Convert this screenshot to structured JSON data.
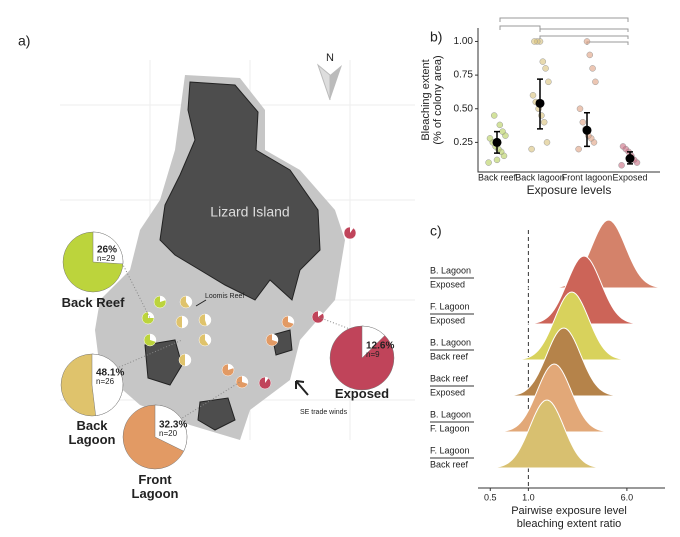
{
  "panel_labels": [
    "a)",
    "b)",
    "c)"
  ],
  "map": {
    "island": "Lizard Island",
    "north": "N",
    "loomis": "Loomis Reef",
    "winds": "SE trade winds"
  },
  "chart_data": [
    {
      "type": "pie",
      "categories": [
        "Back Reef",
        "Back Lagoon",
        "Front Lagoon",
        "Exposed"
      ],
      "values": [
        26,
        48.1,
        32.3,
        12.6
      ],
      "value_labels": [
        "26%",
        "48.1%",
        "32.3%",
        "12.6%"
      ],
      "n_labels": [
        "n=29",
        "n=26",
        "n=20",
        "n=9"
      ],
      "colors": [
        "#bcd43c",
        "#dfc36c",
        "#e29a64",
        "#c0445a"
      ]
    },
    {
      "type": "dotwhisker",
      "xlabel": "Exposure levels",
      "ylabel": [
        "Bleaching extent",
        "(% of colony area)"
      ],
      "categories": [
        "Back reef",
        "Back lagoon",
        "Front lagoon",
        "Exposed"
      ],
      "values": [
        0.25,
        0.54,
        0.34,
        0.13
      ],
      "errors": [
        [
          0.17,
          0.33
        ],
        [
          0.35,
          0.72
        ],
        [
          0.22,
          0.47
        ],
        [
          0.09,
          0.18
        ]
      ],
      "points": [
        [
          0.1,
          0.15,
          0.18,
          0.2,
          0.22,
          0.25,
          0.28,
          0.3,
          0.33,
          0.38,
          0.12,
          0.45
        ],
        [
          0.2,
          0.25,
          0.4,
          0.45,
          0.5,
          0.55,
          0.6,
          0.7,
          0.8,
          0.85,
          1,
          1,
          1
        ],
        [
          0.2,
          0.25,
          0.28,
          0.3,
          0.35,
          0.4,
          0.5,
          0.7,
          0.8,
          0.9,
          1
        ],
        [
          0.08,
          0.1,
          0.12,
          0.15,
          0.18,
          0.2,
          0.22
        ]
      ],
      "colors": [
        "#b6cf5a",
        "#d8c27a",
        "#e0a080",
        "#c86a80"
      ],
      "ylim": [
        0.03,
        1.1
      ],
      "yticks": [
        {
          "value": 0.25,
          "label": "0.25"
        },
        {
          "value": 0.5,
          "label": "0.50"
        },
        {
          "value": 0.75,
          "label": "0.75"
        },
        {
          "value": 1,
          "label": "1.00"
        }
      ]
    },
    {
      "type": "ridgeline",
      "xlabel": [
        "Pairwise exposure level",
        "bleaching extent ratio"
      ],
      "pairs": [
        [
          "B. Lagoon",
          "Exposed"
        ],
        [
          "F. Lagoon",
          "Exposed"
        ],
        [
          "B. Lagoon",
          "Back reef"
        ],
        [
          "Back reef",
          "Exposed"
        ],
        [
          "B. Lagoon",
          "F. Lagoon"
        ],
        [
          "F. Lagoon",
          "Back reef"
        ]
      ],
      "values": [
        4.3,
        2.75,
        2.2,
        1.9,
        1.6,
        1.4
      ],
      "colors": [
        "#d4826a",
        "#cc6458",
        "#d8d25c",
        "#b5834a",
        "#e2a878",
        "#d8c070"
      ],
      "log_x": true,
      "xlim": [
        0.4,
        12
      ],
      "xticks": [
        0.5,
        {
          "value": 1,
          "label": "1.0"
        },
        {
          "value": 6,
          "label": "6.0"
        }
      ],
      "ref_line": 1
    }
  ]
}
